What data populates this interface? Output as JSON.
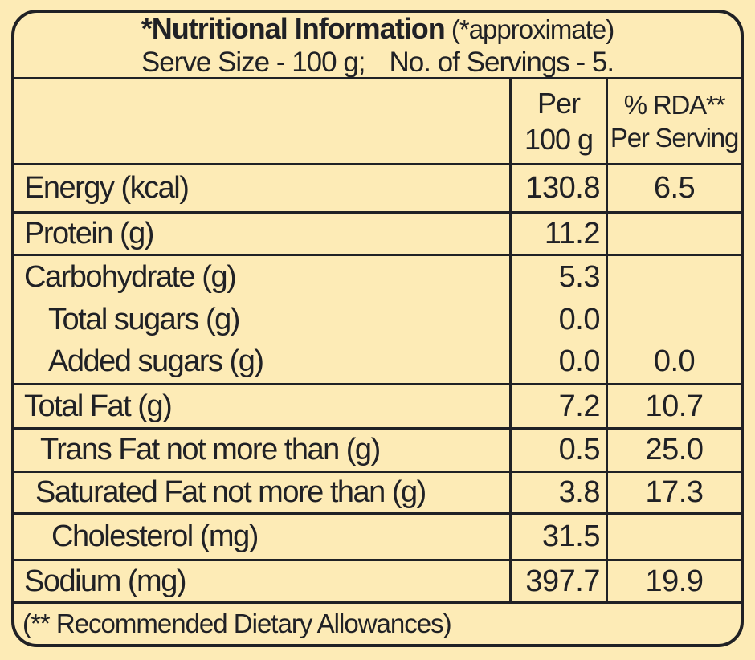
{
  "header": {
    "title_bold": "*Nutritional Information",
    "title_note": " (*approximate)",
    "serve_size": "Serve Size - 100 g;",
    "servings": "No. of Servings - 5."
  },
  "columns": {
    "per": {
      "line1": "Per",
      "line2": "100 g"
    },
    "rda": {
      "line1": "% RDA**",
      "line2": "Per Serving"
    }
  },
  "rows": [
    {
      "label": "Energy (kcal)",
      "per": "130.8",
      "rda": "6.5"
    },
    {
      "label": "Protein (g)",
      "per": "11.2",
      "rda": ""
    },
    {
      "label": "Total Fat (g)",
      "per": "7.2",
      "rda": "10.7"
    },
    {
      "label": "Trans Fat not more than (g)",
      "per": "0.5",
      "rda": "25.0"
    },
    {
      "label": "Saturated Fat not more than (g)",
      "per": "3.8",
      "rda": "17.3"
    },
    {
      "label": "Cholesterol (mg)",
      "per": "31.5",
      "rda": ""
    },
    {
      "label": "Sodium (mg)",
      "per": "397.7",
      "rda": "19.9"
    }
  ],
  "carb_group": {
    "labels": [
      "Carbohydrate (g)",
      "Total sugars (g)",
      "Added sugars (g)"
    ],
    "per100g": [
      "5.3",
      "0.0",
      "0.0"
    ],
    "rda": [
      "",
      "",
      "0.0"
    ]
  },
  "footer": {
    "note": "(** Recommended Dietary Allowances)"
  },
  "colors": {
    "background": "#FDEBB6",
    "ink": "#202125"
  }
}
